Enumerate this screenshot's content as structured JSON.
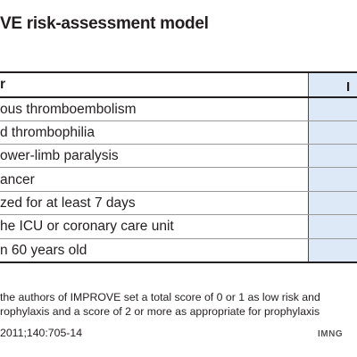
{
  "title": "VE risk-assessment model",
  "table": {
    "header": {
      "factor": "r",
      "points": "I"
    },
    "rows": [
      {
        "factor": "ous thromboembolism"
      },
      {
        "factor": "d thrombophilia"
      },
      {
        "factor": "ower-limb paralysis"
      },
      {
        "factor": "ancer"
      },
      {
        "factor": "zed for at least 7 days"
      },
      {
        "factor": "he ICU or coronary care unit"
      },
      {
        "factor": "n 60 years old"
      }
    ]
  },
  "footnotes": [
    "the authors of IMPROVE set a total score of 0 or 1 as low risk and",
    "rophylaxis and a score of 2 or more as appropriate for prophylaxis",
    "2011;140:705-14"
  ],
  "credit": "IMNG"
}
